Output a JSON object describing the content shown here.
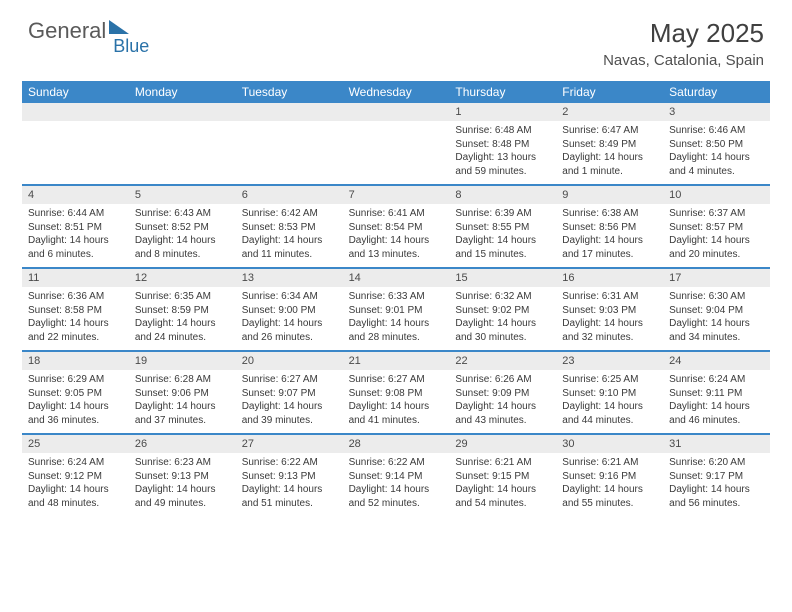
{
  "brand": {
    "part1": "General",
    "part2": "Blue"
  },
  "title": "May 2025",
  "location": "Navas, Catalonia, Spain",
  "colors": {
    "header_bg": "#3b87c8",
    "daynum_bg": "#ececec",
    "text": "#3a3a3a",
    "title": "#404040"
  },
  "days_of_week": [
    "Sunday",
    "Monday",
    "Tuesday",
    "Wednesday",
    "Thursday",
    "Friday",
    "Saturday"
  ],
  "weeks": [
    [
      {
        "num": "",
        "sunrise": "",
        "sunset": "",
        "daylight1": "",
        "daylight2": ""
      },
      {
        "num": "",
        "sunrise": "",
        "sunset": "",
        "daylight1": "",
        "daylight2": ""
      },
      {
        "num": "",
        "sunrise": "",
        "sunset": "",
        "daylight1": "",
        "daylight2": ""
      },
      {
        "num": "",
        "sunrise": "",
        "sunset": "",
        "daylight1": "",
        "daylight2": ""
      },
      {
        "num": "1",
        "sunrise": "Sunrise: 6:48 AM",
        "sunset": "Sunset: 8:48 PM",
        "daylight1": "Daylight: 13 hours",
        "daylight2": "and 59 minutes."
      },
      {
        "num": "2",
        "sunrise": "Sunrise: 6:47 AM",
        "sunset": "Sunset: 8:49 PM",
        "daylight1": "Daylight: 14 hours",
        "daylight2": "and 1 minute."
      },
      {
        "num": "3",
        "sunrise": "Sunrise: 6:46 AM",
        "sunset": "Sunset: 8:50 PM",
        "daylight1": "Daylight: 14 hours",
        "daylight2": "and 4 minutes."
      }
    ],
    [
      {
        "num": "4",
        "sunrise": "Sunrise: 6:44 AM",
        "sunset": "Sunset: 8:51 PM",
        "daylight1": "Daylight: 14 hours",
        "daylight2": "and 6 minutes."
      },
      {
        "num": "5",
        "sunrise": "Sunrise: 6:43 AM",
        "sunset": "Sunset: 8:52 PM",
        "daylight1": "Daylight: 14 hours",
        "daylight2": "and 8 minutes."
      },
      {
        "num": "6",
        "sunrise": "Sunrise: 6:42 AM",
        "sunset": "Sunset: 8:53 PM",
        "daylight1": "Daylight: 14 hours",
        "daylight2": "and 11 minutes."
      },
      {
        "num": "7",
        "sunrise": "Sunrise: 6:41 AM",
        "sunset": "Sunset: 8:54 PM",
        "daylight1": "Daylight: 14 hours",
        "daylight2": "and 13 minutes."
      },
      {
        "num": "8",
        "sunrise": "Sunrise: 6:39 AM",
        "sunset": "Sunset: 8:55 PM",
        "daylight1": "Daylight: 14 hours",
        "daylight2": "and 15 minutes."
      },
      {
        "num": "9",
        "sunrise": "Sunrise: 6:38 AM",
        "sunset": "Sunset: 8:56 PM",
        "daylight1": "Daylight: 14 hours",
        "daylight2": "and 17 minutes."
      },
      {
        "num": "10",
        "sunrise": "Sunrise: 6:37 AM",
        "sunset": "Sunset: 8:57 PM",
        "daylight1": "Daylight: 14 hours",
        "daylight2": "and 20 minutes."
      }
    ],
    [
      {
        "num": "11",
        "sunrise": "Sunrise: 6:36 AM",
        "sunset": "Sunset: 8:58 PM",
        "daylight1": "Daylight: 14 hours",
        "daylight2": "and 22 minutes."
      },
      {
        "num": "12",
        "sunrise": "Sunrise: 6:35 AM",
        "sunset": "Sunset: 8:59 PM",
        "daylight1": "Daylight: 14 hours",
        "daylight2": "and 24 minutes."
      },
      {
        "num": "13",
        "sunrise": "Sunrise: 6:34 AM",
        "sunset": "Sunset: 9:00 PM",
        "daylight1": "Daylight: 14 hours",
        "daylight2": "and 26 minutes."
      },
      {
        "num": "14",
        "sunrise": "Sunrise: 6:33 AM",
        "sunset": "Sunset: 9:01 PM",
        "daylight1": "Daylight: 14 hours",
        "daylight2": "and 28 minutes."
      },
      {
        "num": "15",
        "sunrise": "Sunrise: 6:32 AM",
        "sunset": "Sunset: 9:02 PM",
        "daylight1": "Daylight: 14 hours",
        "daylight2": "and 30 minutes."
      },
      {
        "num": "16",
        "sunrise": "Sunrise: 6:31 AM",
        "sunset": "Sunset: 9:03 PM",
        "daylight1": "Daylight: 14 hours",
        "daylight2": "and 32 minutes."
      },
      {
        "num": "17",
        "sunrise": "Sunrise: 6:30 AM",
        "sunset": "Sunset: 9:04 PM",
        "daylight1": "Daylight: 14 hours",
        "daylight2": "and 34 minutes."
      }
    ],
    [
      {
        "num": "18",
        "sunrise": "Sunrise: 6:29 AM",
        "sunset": "Sunset: 9:05 PM",
        "daylight1": "Daylight: 14 hours",
        "daylight2": "and 36 minutes."
      },
      {
        "num": "19",
        "sunrise": "Sunrise: 6:28 AM",
        "sunset": "Sunset: 9:06 PM",
        "daylight1": "Daylight: 14 hours",
        "daylight2": "and 37 minutes."
      },
      {
        "num": "20",
        "sunrise": "Sunrise: 6:27 AM",
        "sunset": "Sunset: 9:07 PM",
        "daylight1": "Daylight: 14 hours",
        "daylight2": "and 39 minutes."
      },
      {
        "num": "21",
        "sunrise": "Sunrise: 6:27 AM",
        "sunset": "Sunset: 9:08 PM",
        "daylight1": "Daylight: 14 hours",
        "daylight2": "and 41 minutes."
      },
      {
        "num": "22",
        "sunrise": "Sunrise: 6:26 AM",
        "sunset": "Sunset: 9:09 PM",
        "daylight1": "Daylight: 14 hours",
        "daylight2": "and 43 minutes."
      },
      {
        "num": "23",
        "sunrise": "Sunrise: 6:25 AM",
        "sunset": "Sunset: 9:10 PM",
        "daylight1": "Daylight: 14 hours",
        "daylight2": "and 44 minutes."
      },
      {
        "num": "24",
        "sunrise": "Sunrise: 6:24 AM",
        "sunset": "Sunset: 9:11 PM",
        "daylight1": "Daylight: 14 hours",
        "daylight2": "and 46 minutes."
      }
    ],
    [
      {
        "num": "25",
        "sunrise": "Sunrise: 6:24 AM",
        "sunset": "Sunset: 9:12 PM",
        "daylight1": "Daylight: 14 hours",
        "daylight2": "and 48 minutes."
      },
      {
        "num": "26",
        "sunrise": "Sunrise: 6:23 AM",
        "sunset": "Sunset: 9:13 PM",
        "daylight1": "Daylight: 14 hours",
        "daylight2": "and 49 minutes."
      },
      {
        "num": "27",
        "sunrise": "Sunrise: 6:22 AM",
        "sunset": "Sunset: 9:13 PM",
        "daylight1": "Daylight: 14 hours",
        "daylight2": "and 51 minutes."
      },
      {
        "num": "28",
        "sunrise": "Sunrise: 6:22 AM",
        "sunset": "Sunset: 9:14 PM",
        "daylight1": "Daylight: 14 hours",
        "daylight2": "and 52 minutes."
      },
      {
        "num": "29",
        "sunrise": "Sunrise: 6:21 AM",
        "sunset": "Sunset: 9:15 PM",
        "daylight1": "Daylight: 14 hours",
        "daylight2": "and 54 minutes."
      },
      {
        "num": "30",
        "sunrise": "Sunrise: 6:21 AM",
        "sunset": "Sunset: 9:16 PM",
        "daylight1": "Daylight: 14 hours",
        "daylight2": "and 55 minutes."
      },
      {
        "num": "31",
        "sunrise": "Sunrise: 6:20 AM",
        "sunset": "Sunset: 9:17 PM",
        "daylight1": "Daylight: 14 hours",
        "daylight2": "and 56 minutes."
      }
    ]
  ]
}
